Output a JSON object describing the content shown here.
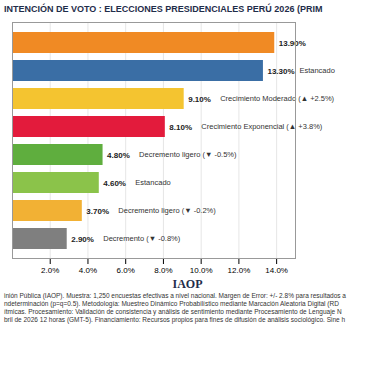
{
  "chart_data": {
    "type": "bar",
    "orientation": "horizontal",
    "title": "INTENCIÓN DE VOTO : ELECCIONES PRESIDENCIALES PERÚ 2026 (PRIM",
    "categories": [
      null,
      null,
      null,
      null,
      null,
      null,
      null,
      null
    ],
    "values": [
      13.9,
      13.3,
      9.1,
      8.1,
      4.8,
      4.6,
      3.7,
      2.9
    ],
    "value_labels": [
      "13.90%",
      "13.30%",
      "9.10%",
      "8.10%",
      "4.80%",
      "4.60%",
      "3.70%",
      "2.90%"
    ],
    "colors": [
      "#f08a24",
      "#3a6ea5",
      "#f4c430",
      "#e31b3c",
      "#5fae3e",
      "#8bc34a",
      "#f2b134",
      "#7f7f7f"
    ],
    "annotations": [
      null,
      "Estancado",
      "Crecimiento Moderado (▲ +2.5%)",
      "Crecimiento Exponencial (▲ +3.8%)",
      "Decremento ligero (▼ -0.5%)",
      "Estancado",
      "Decremento ligero (▼ -0.2%)",
      "Decremento (▼ -0.8%)"
    ],
    "xlim": [
      0,
      15
    ],
    "xticks": [
      {
        "value": 2,
        "label": "2.0%"
      },
      {
        "value": 4,
        "label": "4.0%"
      },
      {
        "value": 6,
        "label": "6.0%"
      },
      {
        "value": 8,
        "label": "8.0%"
      },
      {
        "value": 10,
        "label": "10.0%"
      },
      {
        "value": 12,
        "label": "12.0%"
      },
      {
        "value": 14,
        "label": "14.0%"
      }
    ],
    "grid": true,
    "data_labels": true,
    "logo": "IAOP",
    "source": [
      "inión Pública (IAOP). Muestra: 1,250 encuestas efectivas a nivel nacional. Margen de Error: +/- 2.8% para resultados a",
      "ndeterminación (p=q=0.5). Metodología: Muestreo Dinámico Probabilístico mediante Marcación Aleatoria Digital (RD",
      "ítmicas. Procesamiento: Validación de consistencia y análisis de sentimiento mediante Procesamiento de Lenguaje N",
      "bril de 2026 12 horas (GMT-5). Financiamiento: Recursos propios para fines de difusión de análisis sociológico. Sine h"
    ]
  }
}
